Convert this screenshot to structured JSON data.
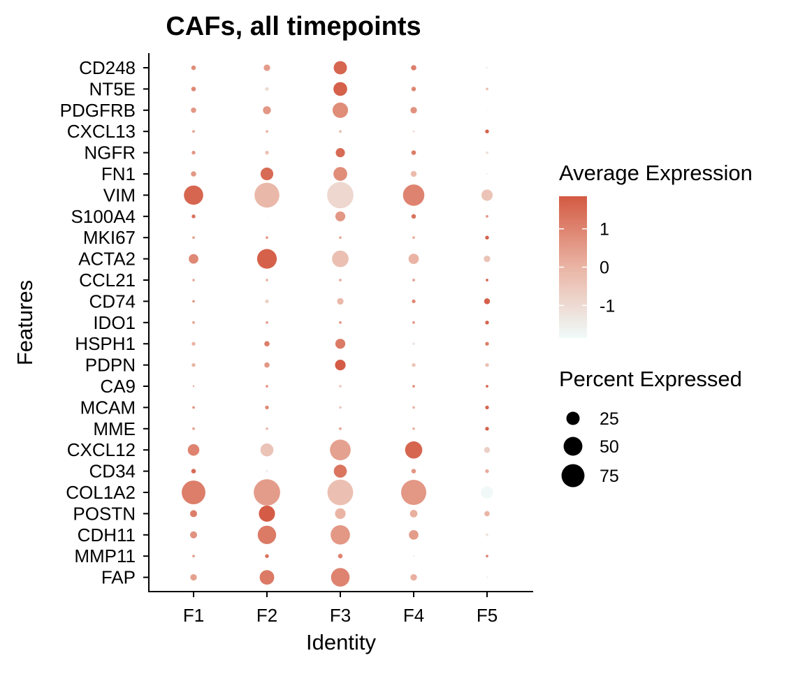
{
  "chart_data": {
    "type": "dotplot",
    "title": "CAFs, all timepoints",
    "xlabel": "Identity",
    "ylabel": "Features",
    "categories": [
      "F1",
      "F2",
      "F3",
      "F4",
      "F5"
    ],
    "features": [
      "CD248",
      "NT5E",
      "PDGFRB",
      "CXCL13",
      "NGFR",
      "FN1",
      "VIM",
      "S100A4",
      "MKI67",
      "ACTA2",
      "CCL21",
      "CD74",
      "IDO1",
      "HSPH1",
      "PDPN",
      "CA9",
      "MCAM",
      "MME",
      "CXCL12",
      "CD34",
      "COL1A2",
      "POSTN",
      "CDH11",
      "MMP11",
      "FAP"
    ],
    "percent_expressed": [
      [
        3,
        6,
        25,
        4,
        1
      ],
      [
        3,
        2,
        27,
        3,
        1
      ],
      [
        4,
        9,
        34,
        6,
        0
      ],
      [
        1,
        1,
        1,
        0,
        2
      ],
      [
        2,
        2,
        12,
        3,
        1
      ],
      [
        4,
        23,
        27,
        5,
        0
      ],
      [
        53,
        88,
        99,
        65,
        18
      ],
      [
        2,
        0,
        14,
        3,
        1
      ],
      [
        1,
        1,
        1,
        1,
        2
      ],
      [
        13,
        55,
        39,
        15,
        6
      ],
      [
        1,
        1,
        1,
        1,
        1
      ],
      [
        1,
        2,
        6,
        2,
        5
      ],
      [
        1,
        1,
        1,
        1,
        2
      ],
      [
        2,
        4,
        14,
        1,
        2
      ],
      [
        2,
        4,
        16,
        2,
        2
      ],
      [
        0,
        1,
        1,
        1,
        1
      ],
      [
        1,
        2,
        1,
        1,
        2
      ],
      [
        1,
        1,
        1,
        1,
        2
      ],
      [
        19,
        24,
        61,
        42,
        5
      ],
      [
        3,
        1,
        24,
        3,
        2
      ],
      [
        80,
        99,
        94,
        90,
        21
      ],
      [
        7,
        37,
        16,
        8,
        4
      ],
      [
        7,
        48,
        53,
        13,
        1
      ],
      [
        1,
        2,
        3,
        0,
        1
      ],
      [
        6,
        30,
        49,
        6,
        0
      ]
    ],
    "average_expression": [
      [
        0.8,
        0.5,
        1.6,
        1.1,
        -1.7
      ],
      [
        0.9,
        -1.0,
        1.7,
        0.9,
        -0.3
      ],
      [
        0.6,
        0.6,
        0.8,
        0.7,
        -1.9
      ],
      [
        0.3,
        0.0,
        -0.3,
        -0.6,
        1.7
      ],
      [
        0.6,
        -0.3,
        1.5,
        1.1,
        -1.2
      ],
      [
        0.6,
        1.5,
        0.8,
        -0.2,
        -1.6
      ],
      [
        1.6,
        -0.1,
        -0.9,
        1.0,
        -0.4
      ],
      [
        1.4,
        -1.9,
        0.6,
        1.3,
        0.6
      ],
      [
        0.3,
        0.5,
        0.2,
        0.1,
        1.7
      ],
      [
        0.9,
        1.7,
        -0.3,
        0.0,
        -0.4
      ],
      [
        0.1,
        0.0,
        0.2,
        0.5,
        1.6
      ],
      [
        0.5,
        -0.7,
        -0.1,
        0.9,
        1.7
      ],
      [
        0.4,
        0.4,
        0.6,
        0.6,
        1.7
      ],
      [
        0.0,
        1.1,
        1.2,
        -1.3,
        1.1
      ],
      [
        0.0,
        0.6,
        1.8,
        -0.4,
        -0.3
      ],
      [
        0.3,
        0.6,
        -0.6,
        0.7,
        1.6
      ],
      [
        0.6,
        0.9,
        -0.6,
        0.0,
        1.6
      ],
      [
        0.3,
        -0.2,
        0.3,
        0.0,
        1.7
      ],
      [
        1.0,
        -0.4,
        0.4,
        1.6,
        -0.7
      ],
      [
        1.5,
        -1.6,
        1.3,
        0.6,
        0.2
      ],
      [
        1.1,
        0.5,
        -0.3,
        0.6,
        -1.8
      ],
      [
        1.1,
        1.8,
        0.0,
        0.1,
        0.0
      ],
      [
        0.7,
        1.2,
        0.6,
        0.5,
        -1.2
      ],
      [
        0.4,
        1.4,
        1.0,
        -1.5,
        0.9
      ],
      [
        0.4,
        1.2,
        1.0,
        0.1,
        -1.5
      ]
    ],
    "color_legend": {
      "title": "Average Expression",
      "range": [
        -1.85,
        1.85
      ],
      "ticks": [
        1,
        0,
        -1
      ],
      "tick_labels": [
        "1",
        "0",
        "-1"
      ],
      "low_color": "#f0fbfa",
      "mid_color": "#eab4a4",
      "high_color": "#d35a43"
    },
    "size_legend": {
      "title": "Percent Expressed",
      "values": [
        25,
        50,
        75
      ],
      "labels": [
        "25",
        "50",
        "75"
      ]
    },
    "legend_position": "right",
    "grid": false
  }
}
